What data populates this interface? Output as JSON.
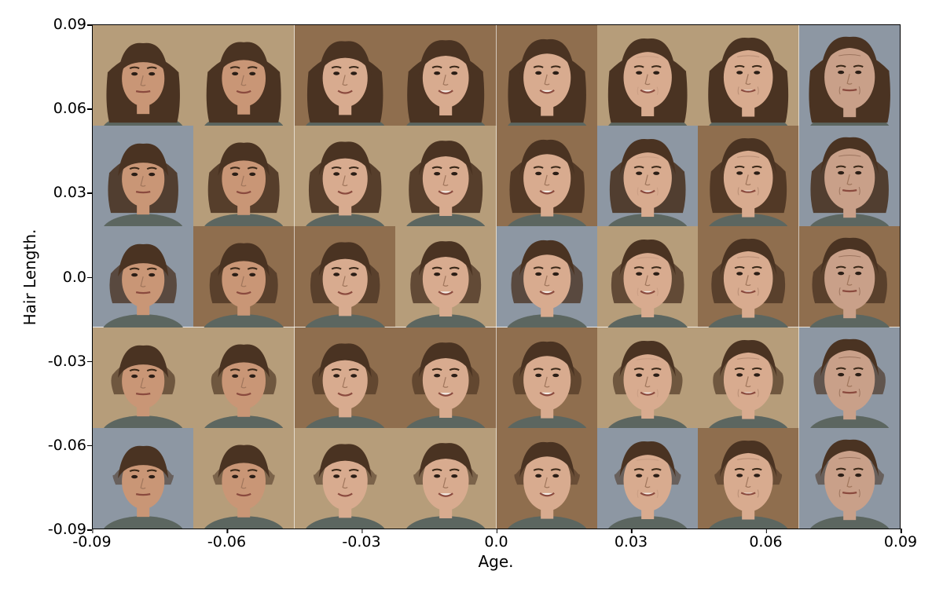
{
  "axes": {
    "xlabel": "Age.",
    "ylabel": "Hair Length.",
    "xticks": [
      "-0.09",
      "-0.06",
      "-0.03",
      "0.0",
      "0.03",
      "0.06",
      "0.09"
    ],
    "yticks": [
      "0.09",
      "0.06",
      "0.03",
      "0.0",
      "-0.03",
      "-0.06",
      "-0.09"
    ],
    "xlim": [
      -0.09,
      0.09
    ],
    "ylim": [
      -0.09,
      0.09
    ]
  },
  "grid": {
    "columns": 8,
    "rows": 5,
    "column_age_levels": [
      0.0,
      0.15,
      0.3,
      0.45,
      0.6,
      0.72,
      0.84,
      1.0
    ],
    "row_hair_levels": [
      1.0,
      0.75,
      0.5,
      0.25,
      0.0
    ]
  },
  "colors": {
    "skin": "#d8ab8f",
    "hair": "#4a3322",
    "bg_blue": "#8d97a3",
    "bg_tan": "#b69d7a",
    "bg_brown": "#8f6e4e",
    "shirt": "#5c6660"
  }
}
